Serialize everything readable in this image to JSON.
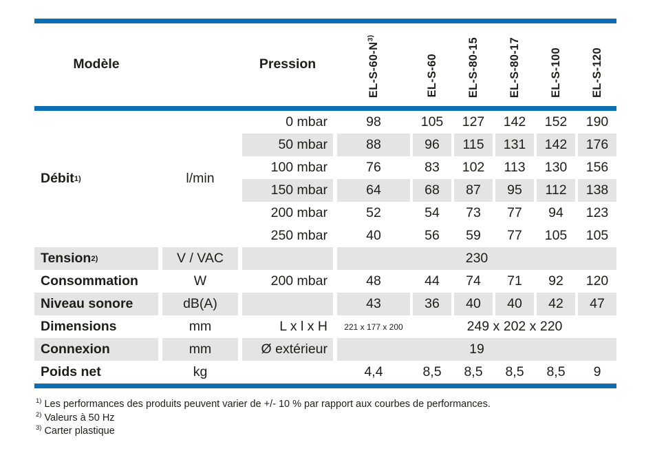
{
  "colors": {
    "accent_blue": "#0e6eb3",
    "row_shade": "#e4e4e4",
    "text": "#1d1d1b"
  },
  "table": {
    "header": {
      "modele_label": "Modèle",
      "pression_label": "Pression",
      "models": [
        {
          "label": "EL-S-60-N",
          "sup": "3)"
        },
        {
          "label": "EL-S-60",
          "sup": ""
        },
        {
          "label": "EL-S-80-15",
          "sup": ""
        },
        {
          "label": "EL-S-80-17",
          "sup": ""
        },
        {
          "label": "EL-S-100",
          "sup": ""
        },
        {
          "label": "EL-S-120",
          "sup": ""
        }
      ]
    },
    "debit": {
      "label": "Débit",
      "sup": "1)",
      "unit": "l/min",
      "rows": [
        {
          "pressure": "0 mbar",
          "values": [
            "98",
            "105",
            "127",
            "142",
            "152",
            "190"
          ]
        },
        {
          "pressure": "50 mbar",
          "values": [
            "88",
            "96",
            "115",
            "131",
            "142",
            "176"
          ]
        },
        {
          "pressure": "100 mbar",
          "values": [
            "76",
            "83",
            "102",
            "113",
            "130",
            "156"
          ]
        },
        {
          "pressure": "150 mbar",
          "values": [
            "64",
            "68",
            "87",
            "95",
            "112",
            "138"
          ]
        },
        {
          "pressure": "200 mbar",
          "values": [
            "52",
            "54",
            "73",
            "77",
            "94",
            "123"
          ]
        },
        {
          "pressure": "250 mbar",
          "values": [
            "40",
            "56",
            "59",
            "77",
            "105",
            "105"
          ]
        }
      ]
    },
    "tension": {
      "label": "Tension",
      "sup": "2)",
      "unit": "V / VAC",
      "pressure": "",
      "merged_value": "230"
    },
    "consommation": {
      "label": "Consommation",
      "unit": "W",
      "pressure": "200 mbar",
      "values": [
        "48",
        "44",
        "74",
        "71",
        "92",
        "120"
      ]
    },
    "niveau_sonore": {
      "label": "Niveau sonore",
      "unit": "dB(A)",
      "pressure": "",
      "values": [
        "43",
        "36",
        "40",
        "40",
        "42",
        "47"
      ]
    },
    "dimensions": {
      "label": "Dimensions",
      "unit": "mm",
      "pressure": "L x l x H",
      "value_first": "221 x 177 x 200",
      "value_rest": "249 x 202 x 220"
    },
    "connexion": {
      "label": "Connexion",
      "unit": "mm",
      "pressure": "Ø extérieur",
      "merged_value": "19"
    },
    "poids_net": {
      "label": "Poids net",
      "unit": "kg",
      "pressure": "",
      "values": [
        "4,4",
        "8,5",
        "8,5",
        "8,5",
        "8,5",
        "9"
      ]
    }
  },
  "footnotes": [
    {
      "sup": "1)",
      "text": "Les performances des produits peuvent varier de +/- 10 % par rapport aux courbes de performances."
    },
    {
      "sup": "2)",
      "text": "Valeurs à 50 Hz"
    },
    {
      "sup": "3)",
      "text": "Carter plastique"
    }
  ]
}
